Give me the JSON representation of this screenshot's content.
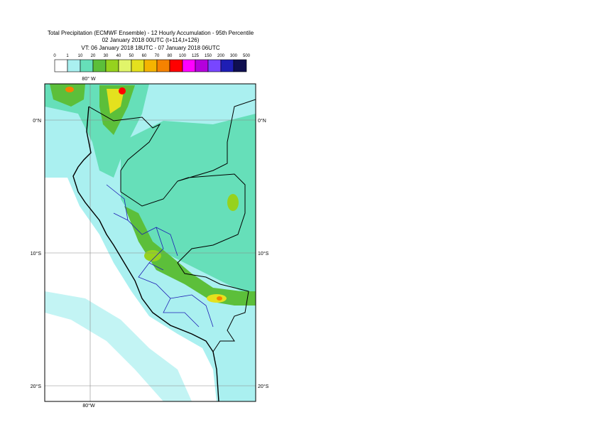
{
  "header": {
    "title_lines": [
      "Total Precipitation (ECMWF Ensemble) - 12 Hourly Accumulation - 95th Percentile",
      "02 January 2018 00UTC (t+114,t+126)",
      "VT: 06 January 2018 18UTC - 07 January 2018 06UTC"
    ]
  },
  "legend": {
    "labels": [
      "0",
      "1",
      "10",
      "20",
      "30",
      "40",
      "50",
      "60",
      "70",
      "80",
      "100",
      "125",
      "150",
      "200",
      "300",
      "500"
    ],
    "colors": [
      "#ffffff",
      "#aaf0f0",
      "#66dfb9",
      "#5cbf3a",
      "#96d21e",
      "#e1f56a",
      "#e4e11e",
      "#f5b400",
      "#f58200",
      "#ff0000",
      "#ff00ff",
      "#b400dc",
      "#7846ff",
      "#1e1eb4",
      "#0f0f50"
    ]
  },
  "map": {
    "lon_labels_top": [
      "80° W"
    ],
    "lon_labels_bottom": [
      "80°W"
    ],
    "lat_labels_left": [
      "0°N",
      "10°S",
      "20°S"
    ],
    "lat_labels_right": [
      "0°N",
      "10°S",
      "20°S"
    ]
  }
}
